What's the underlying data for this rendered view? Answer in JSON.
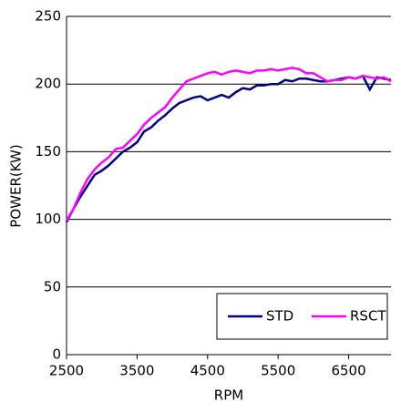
{
  "chart_data": {
    "type": "line",
    "x_label": "RPM",
    "y_label": "POWER(KW)",
    "x": [
      2500,
      2600,
      2700,
      2800,
      2900,
      3000,
      3100,
      3200,
      3300,
      3400,
      3500,
      3600,
      3700,
      3800,
      3900,
      4000,
      4100,
      4200,
      4300,
      4400,
      4500,
      4600,
      4700,
      4800,
      4900,
      5000,
      5100,
      5200,
      5300,
      5400,
      5500,
      5600,
      5700,
      5800,
      5900,
      6000,
      6100,
      6200,
      6300,
      6400,
      6500,
      6600,
      6700,
      6800,
      6900,
      7000,
      7100
    ],
    "series": [
      {
        "name": "STD",
        "color": "#000080",
        "values": [
          98,
          108,
          117,
          125,
          133,
          136,
          140,
          145,
          150,
          153,
          157,
          165,
          168,
          173,
          177,
          182,
          186,
          188,
          190,
          191,
          188,
          190,
          192,
          190,
          194,
          197,
          196,
          199,
          199,
          200,
          200,
          203,
          202,
          204,
          204,
          203,
          202,
          202,
          203,
          204,
          205,
          204,
          206,
          196,
          205,
          204,
          203
        ]
      },
      {
        "name": "RSCT",
        "color": "#ff00ff",
        "values": [
          99,
          108,
          120,
          130,
          137,
          142,
          146,
          152,
          153,
          158,
          163,
          170,
          175,
          179,
          183,
          190,
          196,
          202,
          204,
          206,
          208,
          209,
          207,
          209,
          210,
          209,
          208,
          210,
          210,
          211,
          210,
          211,
          212,
          211,
          208,
          208,
          205,
          202,
          203,
          203,
          205,
          204,
          206,
          205,
          204,
          205,
          202
        ]
      }
    ],
    "xlim": [
      2500,
      7100
    ],
    "ylim": [
      0,
      250
    ],
    "xticks": [
      2500,
      3500,
      4500,
      5500,
      6500
    ],
    "yticks": [
      0,
      50,
      100,
      150,
      200,
      250
    ],
    "grid": true,
    "legend": "lower right"
  }
}
